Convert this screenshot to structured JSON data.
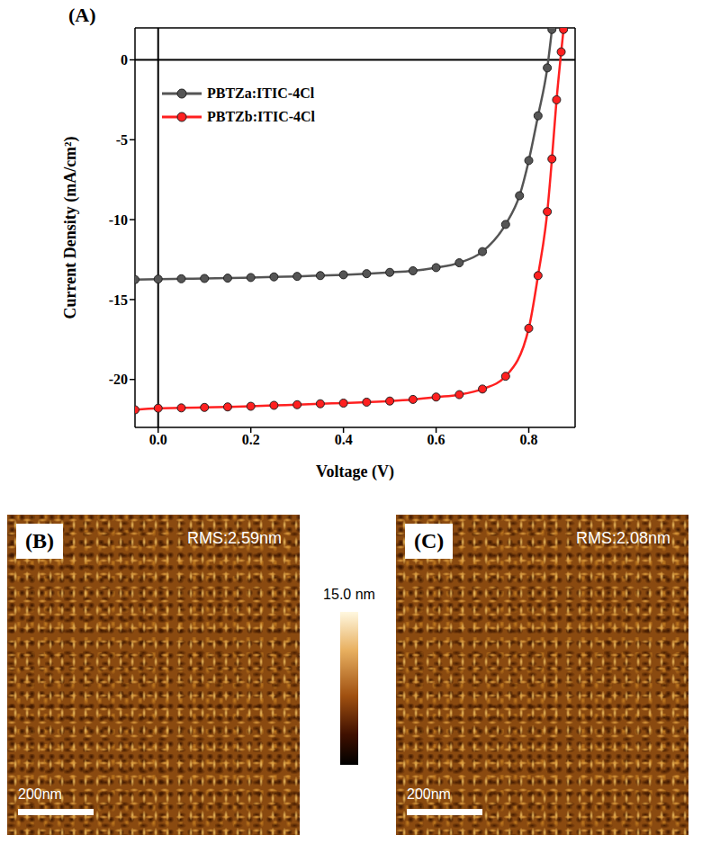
{
  "chart_data": {
    "type": "line",
    "label": "(A)",
    "x_label": "Voltage (V)",
    "y_label": "Current Density (mA/cm²)",
    "xlim": [
      -0.05,
      0.9
    ],
    "ylim": [
      -23,
      2
    ],
    "xticks": [
      {
        "value": 0,
        "label": "0.0"
      },
      0.2,
      0.4,
      0.6,
      0.8
    ],
    "yticks": [
      -20,
      -15,
      -10,
      -5,
      0
    ],
    "reference_lines": {
      "x": 0,
      "y": 0
    },
    "legend": "upper left",
    "marker": "circle",
    "grid": false,
    "series": [
      {
        "name": "PBTZa:ITIC-4Cl",
        "color": "#555555",
        "x": [
          -0.05,
          0,
          0.05,
          0.1,
          0.15,
          0.2,
          0.25,
          0.3,
          0.35,
          0.4,
          0.45,
          0.5,
          0.55,
          0.6,
          0.65,
          0.7,
          0.75,
          0.78,
          0.8,
          0.82,
          0.84,
          0.85
        ],
        "values": [
          -13.75,
          -13.72,
          -13.7,
          -13.68,
          -13.66,
          -13.62,
          -13.58,
          -13.55,
          -13.5,
          -13.45,
          -13.38,
          -13.3,
          -13.2,
          -13.0,
          -12.7,
          -12.0,
          -10.3,
          -8.5,
          -6.3,
          -3.5,
          -0.5,
          1.9
        ]
      },
      {
        "name": "PBTZb:ITIC-4Cl",
        "color": "#ff2020",
        "x": [
          -0.05,
          0,
          0.05,
          0.1,
          0.15,
          0.2,
          0.25,
          0.3,
          0.35,
          0.4,
          0.45,
          0.5,
          0.55,
          0.6,
          0.65,
          0.7,
          0.75,
          0.8,
          0.82,
          0.84,
          0.85,
          0.86,
          0.87,
          0.875
        ],
        "values": [
          -21.9,
          -21.8,
          -21.78,
          -21.75,
          -21.72,
          -21.68,
          -21.62,
          -21.58,
          -21.52,
          -21.48,
          -21.42,
          -21.35,
          -21.25,
          -21.1,
          -20.95,
          -20.6,
          -19.8,
          -16.8,
          -13.5,
          -9.5,
          -6.2,
          -2.5,
          0.5,
          1.9
        ]
      }
    ]
  },
  "afm_images": [
    {
      "label": "(B)",
      "rms": "RMS:2.59nm",
      "scale_bar": "200nm"
    },
    {
      "label": "(C)",
      "rms": "RMS:2.08nm",
      "scale_bar": "200nm"
    }
  ],
  "color_bar": {
    "label": "15.0 nm"
  }
}
